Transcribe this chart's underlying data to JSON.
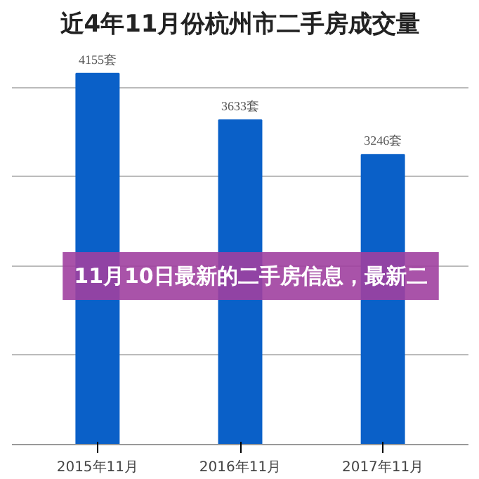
{
  "chart_data": {
    "type": "bar",
    "title": "近4年11月份杭州市二手房成交量",
    "categories": [
      "2015年11月",
      "2016年11月",
      "2017年11月"
    ],
    "values": [
      4155,
      3633,
      3246
    ],
    "value_labels": [
      "4155套",
      "3633套",
      "3246套"
    ],
    "color": "#0a60c8",
    "grid": "y",
    "tick_labels": "x",
    "annotations": [
      "11月10日最新的二手房信息，最新二"
    ]
  }
}
